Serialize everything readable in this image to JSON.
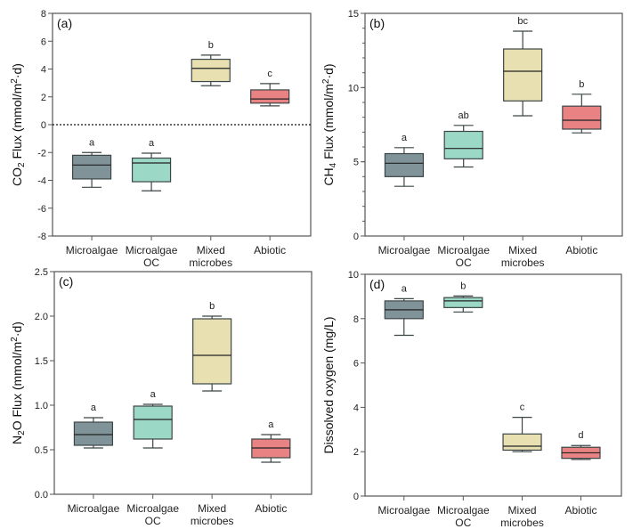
{
  "chart_data": [
    {
      "type": "box",
      "panel": "(a)",
      "ylabel": "CO2 Flux (mmol/m2·d)",
      "ylabel_parts": {
        "pre": "CO",
        "sub": "2",
        "mid": " Flux (mmol/m",
        "sup": "2",
        "post": "·d)"
      },
      "ylim": [
        -8,
        8
      ],
      "yticks": [
        8,
        6,
        4,
        2,
        0,
        -2,
        -4,
        -6,
        -8
      ],
      "reference_line": 0,
      "categories": [
        "Microalgae",
        "Microalgae\nOC",
        "Mixed\nmicrobes",
        "Abiotic"
      ],
      "boxes": [
        {
          "category": "Microalgae",
          "min": -4.5,
          "q1": -3.9,
          "median": -2.9,
          "q3": -2.2,
          "max": -2.0,
          "sig": "a"
        },
        {
          "category": "Microalgae OC",
          "min": -4.75,
          "q1": -4.1,
          "median": -2.75,
          "q3": -2.4,
          "max": -2.05,
          "sig": "a"
        },
        {
          "category": "Mixed microbes",
          "min": 2.8,
          "q1": 3.1,
          "median": 4.05,
          "q3": 4.7,
          "max": 5.0,
          "sig": "b"
        },
        {
          "category": "Abiotic",
          "min": 1.35,
          "q1": 1.55,
          "median": 1.85,
          "q3": 2.5,
          "max": 2.95,
          "sig": "c"
        }
      ]
    },
    {
      "type": "box",
      "panel": "(b)",
      "ylabel": "CH4 Flux (mmol/m2·d)",
      "ylabel_parts": {
        "pre": "CH",
        "sub": "4",
        "mid": " Flux (mmol/m",
        "sup": "2",
        "post": "·d)"
      },
      "ylim": [
        0,
        15
      ],
      "yticks": [
        15,
        10,
        5,
        0
      ],
      "minor_step": 1,
      "categories": [
        "Microalgae",
        "Microalgae\nOC",
        "Mixed\nmicrobes",
        "Abiotic"
      ],
      "boxes": [
        {
          "category": "Microalgae",
          "min": 3.35,
          "q1": 4.0,
          "median": 4.9,
          "q3": 5.55,
          "max": 5.95,
          "sig": "a"
        },
        {
          "category": "Microalgae OC",
          "min": 4.65,
          "q1": 5.2,
          "median": 5.9,
          "q3": 7.05,
          "max": 7.45,
          "sig": "ab"
        },
        {
          "category": "Mixed microbes",
          "min": 8.1,
          "q1": 9.1,
          "median": 11.1,
          "q3": 12.6,
          "max": 13.8,
          "sig": "bc"
        },
        {
          "category": "Abiotic",
          "min": 6.95,
          "q1": 7.2,
          "median": 7.8,
          "q3": 8.75,
          "max": 9.55,
          "sig": "b"
        }
      ]
    },
    {
      "type": "box",
      "panel": "(c)",
      "ylabel": "N2O Flux (mmol/m2·d)",
      "ylabel_parts": {
        "pre": "N",
        "sub": "2",
        "mid": "O Flux (mmol/m",
        "sup": "2",
        "post": "·d)"
      },
      "ylim": [
        0,
        2.5
      ],
      "yticks": [
        "2.5",
        "2.0",
        "1.5",
        "1.0",
        "0.5",
        "0.0"
      ],
      "categories": [
        "Microalgae",
        "Microalgae\nOC",
        "Mixed\nmicrobes",
        "Abiotic"
      ],
      "boxes": [
        {
          "category": "Microalgae",
          "min": 0.52,
          "q1": 0.55,
          "median": 0.67,
          "q3": 0.81,
          "max": 0.86,
          "sig": "a"
        },
        {
          "category": "Microalgae OC",
          "min": 0.52,
          "q1": 0.62,
          "median": 0.84,
          "q3": 0.99,
          "max": 1.01,
          "sig": "a"
        },
        {
          "category": "Mixed microbes",
          "min": 1.16,
          "q1": 1.24,
          "median": 1.56,
          "q3": 1.97,
          "max": 2.0,
          "sig": "b"
        },
        {
          "category": "Abiotic",
          "min": 0.36,
          "q1": 0.41,
          "median": 0.52,
          "q3": 0.62,
          "max": 0.67,
          "sig": "a"
        }
      ]
    },
    {
      "type": "box",
      "panel": "(d)",
      "ylabel": "Dissolved oxygen (mg/L)",
      "ylabel_parts": {
        "pre": "Dissolved oxygen (mg/L)",
        "sub": "",
        "mid": "",
        "sup": "",
        "post": ""
      },
      "ylim": [
        0,
        10
      ],
      "yticks": [
        10,
        8,
        6,
        4,
        2,
        0
      ],
      "categories": [
        "Microalgae",
        "Microalgae\nOC",
        "Mixed\nmicrobes",
        "Abiotic"
      ],
      "boxes": [
        {
          "category": "Microalgae",
          "min": 7.25,
          "q1": 8.0,
          "median": 8.4,
          "q3": 8.8,
          "max": 8.9,
          "sig": "a"
        },
        {
          "category": "Microalgae OC",
          "min": 8.3,
          "q1": 8.5,
          "median": 8.8,
          "q3": 8.95,
          "max": 9.02,
          "sig": "b"
        },
        {
          "category": "Mixed microbes",
          "min": 2.0,
          "q1": 2.07,
          "median": 2.25,
          "q3": 2.8,
          "max": 3.55,
          "sig": "c"
        },
        {
          "category": "Abiotic",
          "min": 1.65,
          "q1": 1.7,
          "median": 1.95,
          "q3": 2.2,
          "max": 2.28,
          "sig": "d"
        }
      ]
    }
  ],
  "colors": {
    "Microalgae": "#7f9399",
    "Microalgae OC": "#9bd8c6",
    "Mixed microbes": "#e9e0b2",
    "Abiotic": "#e98282",
    "axis": "#555555",
    "box_stroke_dark": "#2f3a3a"
  }
}
